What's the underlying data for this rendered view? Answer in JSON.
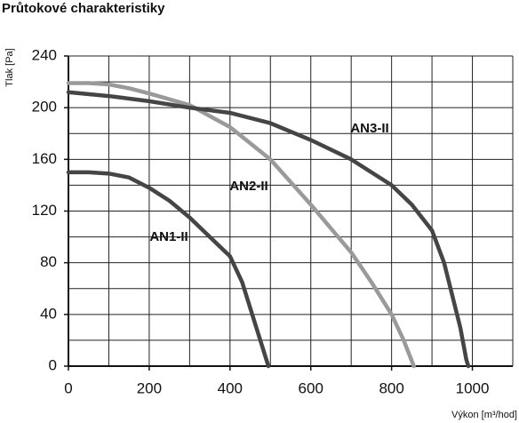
{
  "chart_data": {
    "type": "line",
    "title": "Průtokové charakteristiky",
    "y_label": "Tlak [Pa]",
    "x_label": "Výkon [m³/hod]",
    "xlim": [
      0,
      1100
    ],
    "ylim": [
      0,
      240
    ],
    "xticks": [
      0,
      200,
      400,
      600,
      800,
      1000
    ],
    "yticks": [
      0,
      40,
      80,
      120,
      160,
      200,
      240
    ],
    "x_grid": [
      0,
      100,
      200,
      300,
      400,
      500,
      600,
      700,
      800,
      900,
      1000,
      1100
    ],
    "y_grid": [
      0,
      20,
      40,
      60,
      80,
      100,
      120,
      140,
      160,
      180,
      200,
      220,
      240
    ],
    "series": [
      {
        "name": "AN1-II",
        "color": "#454545",
        "x": [
          0,
          50,
          100,
          150,
          200,
          250,
          300,
          350,
          400,
          430,
          450,
          470,
          490,
          495
        ],
        "values": [
          150,
          150,
          149,
          146,
          138,
          128,
          115,
          100,
          85,
          65,
          45,
          25,
          5,
          0
        ]
      },
      {
        "name": "AN2-II",
        "color": "#9a9a9a",
        "x": [
          0,
          50,
          100,
          150,
          200,
          300,
          400,
          500,
          600,
          700,
          750,
          800,
          830,
          855
        ],
        "values": [
          219,
          219,
          218,
          215,
          211,
          202,
          185,
          160,
          125,
          88,
          65,
          40,
          20,
          0
        ]
      },
      {
        "name": "AN3-II",
        "color": "#454545",
        "x": [
          0,
          100,
          200,
          300,
          400,
          500,
          600,
          700,
          800,
          850,
          900,
          930,
          950,
          970,
          985,
          990
        ],
        "values": [
          212,
          209,
          205,
          200,
          196,
          188,
          175,
          160,
          140,
          125,
          105,
          80,
          55,
          30,
          5,
          0
        ]
      }
    ]
  }
}
